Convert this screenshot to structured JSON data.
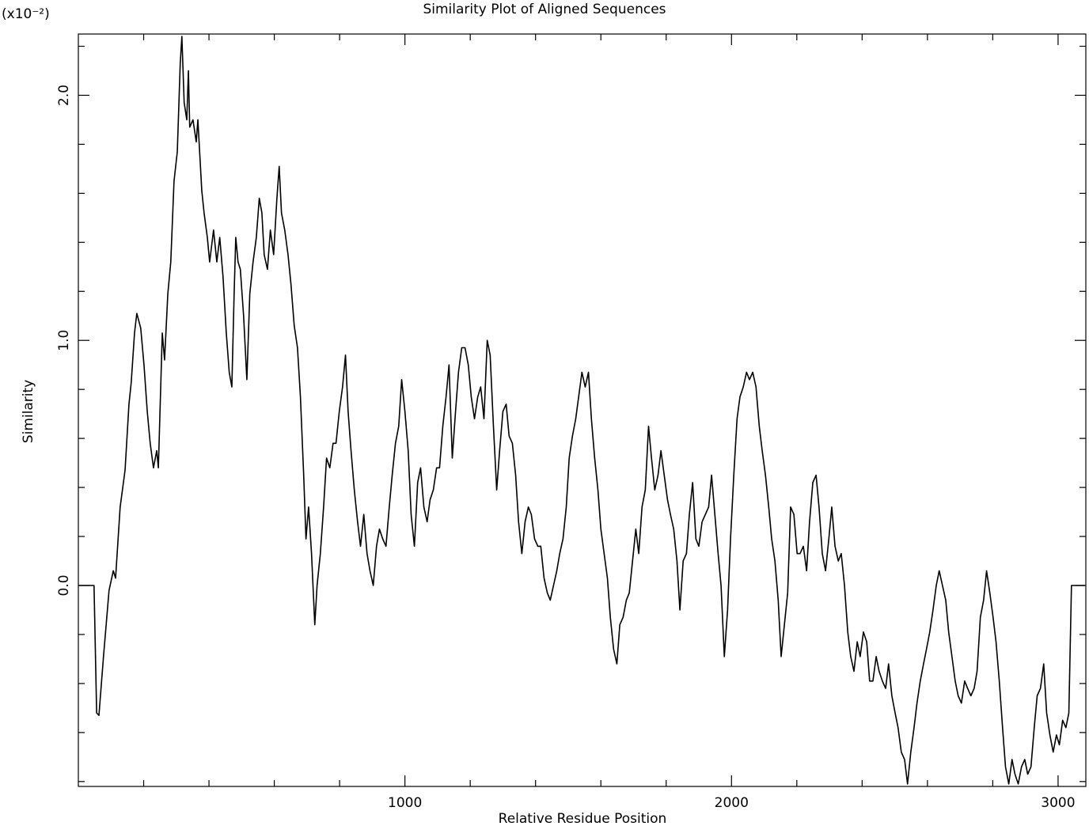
{
  "chart_data": {
    "type": "line",
    "title": "Similarity Plot of Aligned Sequences",
    "x_label": "Relative Residue Position",
    "y_label": "Similarity",
    "y_multiplier": "(x10⁻²)",
    "color": "#000000",
    "xlim": [
      0,
      3085
    ],
    "ylim": [
      -0.82,
      2.25
    ],
    "xticks": [
      1000,
      2000,
      3000
    ],
    "xminorticks": [
      200,
      400,
      600,
      800,
      1200,
      1400,
      1600,
      1800,
      2200,
      2400,
      2600,
      2800
    ],
    "yticks": [
      {
        "value": 0,
        "label": "0.0"
      },
      {
        "value": 1,
        "label": "1.0"
      },
      {
        "value": 2,
        "label": "2.0"
      }
    ],
    "yminorticks": [
      -0.8,
      -0.6,
      -0.4,
      -0.2,
      0.2,
      0.4,
      0.6,
      0.8,
      1.2,
      1.4,
      1.6,
      1.8,
      2.2
    ],
    "x": [
      0,
      48,
      56,
      63,
      77,
      94,
      107,
      114,
      128,
      143,
      155,
      162,
      172,
      179,
      191,
      201,
      211,
      220,
      230,
      240,
      245,
      257,
      264,
      274,
      283,
      293,
      303,
      312,
      317,
      324,
      332,
      337,
      341,
      351,
      361,
      366,
      378,
      385,
      395,
      402,
      414,
      424,
      433,
      443,
      453,
      462,
      470,
      477,
      482,
      489,
      496,
      506,
      516,
      525,
      535,
      545,
      554,
      562,
      569,
      579,
      588,
      598,
      608,
      615,
      622,
      632,
      642,
      651,
      661,
      671,
      680,
      690,
      697,
      705,
      714,
      724,
      731,
      741,
      751,
      760,
      770,
      780,
      789,
      799,
      809,
      818,
      826,
      835,
      845,
      855,
      864,
      874,
      884,
      893,
      903,
      913,
      922,
      932,
      942,
      952,
      961,
      971,
      981,
      990,
      1000,
      1010,
      1019,
      1029,
      1039,
      1048,
      1058,
      1068,
      1077,
      1087,
      1097,
      1106,
      1116,
      1126,
      1135,
      1145,
      1155,
      1164,
      1174,
      1184,
      1194,
      1203,
      1213,
      1223,
      1232,
      1242,
      1252,
      1261,
      1271,
      1281,
      1290,
      1300,
      1310,
      1319,
      1329,
      1339,
      1348,
      1358,
      1368,
      1378,
      1387,
      1397,
      1407,
      1416,
      1426,
      1436,
      1445,
      1455,
      1465,
      1474,
      1484,
      1494,
      1503,
      1513,
      1523,
      1532,
      1542,
      1552,
      1562,
      1571,
      1581,
      1591,
      1600,
      1610,
      1620,
      1629,
      1639,
      1649,
      1658,
      1668,
      1678,
      1687,
      1697,
      1707,
      1716,
      1726,
      1736,
      1746,
      1755,
      1765,
      1775,
      1784,
      1794,
      1804,
      1813,
      1823,
      1833,
      1842,
      1852,
      1862,
      1871,
      1881,
      1891,
      1900,
      1910,
      1920,
      1930,
      1939,
      1949,
      1959,
      1968,
      1978,
      1988,
      1997,
      2007,
      2017,
      2026,
      2036,
      2046,
      2055,
      2065,
      2075,
      2085,
      2094,
      2104,
      2114,
      2123,
      2133,
      2143,
      2152,
      2162,
      2172,
      2181,
      2191,
      2201,
      2210,
      2220,
      2230,
      2239,
      2249,
      2259,
      2268,
      2278,
      2288,
      2298,
      2307,
      2317,
      2327,
      2336,
      2346,
      2356,
      2365,
      2375,
      2385,
      2394,
      2404,
      2414,
      2423,
      2433,
      2443,
      2452,
      2462,
      2472,
      2481,
      2491,
      2501,
      2510,
      2520,
      2530,
      2539,
      2549,
      2559,
      2568,
      2578,
      2588,
      2597,
      2607,
      2617,
      2627,
      2636,
      2646,
      2656,
      2665,
      2675,
      2685,
      2694,
      2704,
      2714,
      2723,
      2733,
      2743,
      2752,
      2762,
      2772,
      2781,
      2791,
      2801,
      2810,
      2820,
      2830,
      2839,
      2849,
      2859,
      2868,
      2878,
      2888,
      2898,
      2907,
      2917,
      2927,
      2936,
      2946,
      2956,
      2965,
      2975,
      2985,
      2995,
      3004,
      3014,
      3024,
      3033,
      3041,
      3082
    ],
    "values": [
      0,
      0,
      -0.52,
      -0.53,
      -0.29,
      -0.02,
      0.06,
      0.03,
      0.32,
      0.47,
      0.74,
      0.83,
      1.03,
      1.11,
      1.05,
      0.9,
      0.71,
      0.58,
      0.48,
      0.55,
      0.48,
      1.03,
      0.92,
      1.19,
      1.32,
      1.65,
      1.77,
      2.13,
      2.24,
      1.97,
      1.9,
      2.1,
      1.87,
      1.9,
      1.81,
      1.9,
      1.61,
      1.52,
      1.42,
      1.32,
      1.45,
      1.32,
      1.42,
      1.26,
      1.03,
      0.87,
      0.81,
      1.19,
      1.42,
      1.32,
      1.29,
      1.1,
      0.84,
      1.19,
      1.32,
      1.42,
      1.58,
      1.52,
      1.35,
      1.29,
      1.45,
      1.35,
      1.58,
      1.71,
      1.52,
      1.45,
      1.35,
      1.23,
      1.06,
      0.97,
      0.77,
      0.45,
      0.19,
      0.32,
      0.13,
      -0.16,
      0,
      0.13,
      0.32,
      0.52,
      0.48,
      0.58,
      0.58,
      0.71,
      0.81,
      0.94,
      0.71,
      0.55,
      0.39,
      0.26,
      0.16,
      0.29,
      0.13,
      0.06,
      0,
      0.16,
      0.23,
      0.19,
      0.16,
      0.32,
      0.45,
      0.58,
      0.65,
      0.84,
      0.71,
      0.55,
      0.29,
      0.16,
      0.42,
      0.48,
      0.32,
      0.26,
      0.35,
      0.39,
      0.48,
      0.48,
      0.65,
      0.77,
      0.9,
      0.52,
      0.71,
      0.87,
      0.97,
      0.97,
      0.9,
      0.77,
      0.68,
      0.77,
      0.81,
      0.68,
      1,
      0.94,
      0.65,
      0.39,
      0.55,
      0.71,
      0.74,
      0.61,
      0.58,
      0.45,
      0.26,
      0.13,
      0.26,
      0.32,
      0.29,
      0.19,
      0.16,
      0.16,
      0.03,
      -0.03,
      -0.06,
      0,
      0.06,
      0.13,
      0.19,
      0.32,
      0.52,
      0.61,
      0.68,
      0.77,
      0.87,
      0.81,
      0.87,
      0.68,
      0.52,
      0.39,
      0.23,
      0.13,
      0.03,
      -0.13,
      -0.26,
      -0.32,
      -0.16,
      -0.13,
      -0.06,
      -0.03,
      0.1,
      0.23,
      0.13,
      0.32,
      0.39,
      0.65,
      0.52,
      0.39,
      0.45,
      0.55,
      0.45,
      0.35,
      0.29,
      0.23,
      0.1,
      -0.1,
      0.1,
      0.13,
      0.29,
      0.42,
      0.19,
      0.16,
      0.26,
      0.29,
      0.32,
      0.45,
      0.29,
      0.13,
      0,
      -0.29,
      -0.1,
      0.19,
      0.45,
      0.68,
      0.77,
      0.81,
      0.87,
      0.84,
      0.87,
      0.81,
      0.65,
      0.55,
      0.45,
      0.32,
      0.19,
      0.1,
      -0.06,
      -0.29,
      -0.16,
      -0.03,
      0.32,
      0.29,
      0.13,
      0.13,
      0.16,
      0.06,
      0.26,
      0.42,
      0.45,
      0.32,
      0.13,
      0.06,
      0.19,
      0.32,
      0.16,
      0.1,
      0.13,
      0,
      -0.19,
      -0.29,
      -0.35,
      -0.23,
      -0.29,
      -0.19,
      -0.23,
      -0.39,
      -0.39,
      -0.29,
      -0.35,
      -0.39,
      -0.42,
      -0.32,
      -0.45,
      -0.52,
      -0.58,
      -0.68,
      -0.71,
      -0.81,
      -0.68,
      -0.58,
      -0.48,
      -0.39,
      -0.32,
      -0.26,
      -0.19,
      -0.1,
      0,
      0.06,
      0,
      -0.06,
      -0.19,
      -0.29,
      -0.39,
      -0.45,
      -0.48,
      -0.39,
      -0.42,
      -0.45,
      -0.42,
      -0.35,
      -0.13,
      -0.06,
      0.06,
      -0.03,
      -0.13,
      -0.23,
      -0.39,
      -0.58,
      -0.74,
      -0.81,
      -0.71,
      -0.77,
      -0.81,
      -0.74,
      -0.71,
      -0.77,
      -0.74,
      -0.58,
      -0.45,
      -0.42,
      -0.32,
      -0.52,
      -0.61,
      -0.68,
      -0.61,
      -0.65,
      -0.55,
      -0.58,
      -0.52,
      0,
      0
    ]
  }
}
